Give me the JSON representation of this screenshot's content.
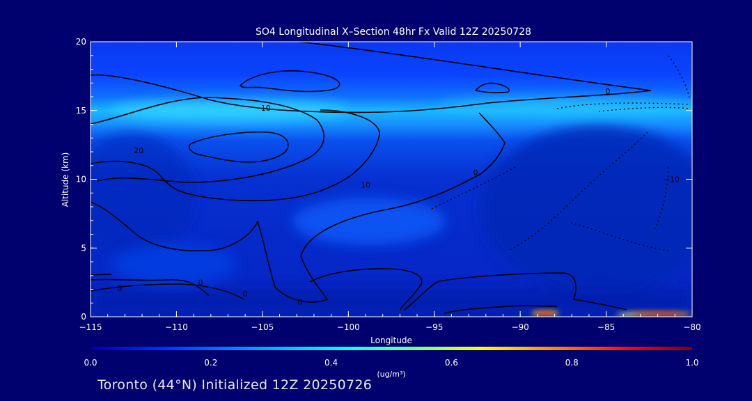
{
  "chart_data": {
    "type": "heatmap",
    "title": "SO4 Longitudinal X–Section 48hr  Fx Valid 12Z 20250728",
    "xlabel": "Longitude",
    "ylabel": "Altitude (km)",
    "xlim": [
      -115,
      -80
    ],
    "ylim": [
      0,
      20
    ],
    "x_ticks": [
      -115,
      -110,
      -105,
      -100,
      -95,
      -90,
      -85,
      -80
    ],
    "x_tick_labels": [
      "−115",
      "−110",
      "−105",
      "−100",
      "−95",
      "−90",
      "−85",
      "−80"
    ],
    "y_ticks": [
      0,
      5,
      10,
      15,
      20
    ],
    "y_tick_labels": [
      "0",
      "5",
      "10",
      "15",
      "20"
    ],
    "colorbar": {
      "min": 0.0,
      "max": 1.0,
      "ticks": [
        0.0,
        0.2,
        0.4,
        0.6,
        0.8,
        1.0
      ],
      "tick_labels": [
        "0.0",
        "0.2",
        "0.4",
        "0.6",
        "0.8",
        "1.0"
      ],
      "unit_label": "(ug/m³)",
      "colors": [
        "#0000a0",
        "#0030ff",
        "#00b0ff",
        "#00ffff",
        "#80ff80",
        "#ffff00",
        "#ff8000",
        "#ff0000",
        "#800000"
      ]
    },
    "contour_labels": [
      {
        "text": "10",
        "x": -104.8,
        "y": 15.2
      },
      {
        "text": "20",
        "x": -112.2,
        "y": 12.1
      },
      {
        "text": "10",
        "x": -99.0,
        "y": 9.6
      },
      {
        "text": "0",
        "x": -92.6,
        "y": 10.5
      },
      {
        "text": "0",
        "x": -84.9,
        "y": 16.4
      },
      {
        "text": "−10",
        "x": -81.2,
        "y": 10.0
      },
      {
        "text": "0",
        "x": -113.3,
        "y": 2.1
      },
      {
        "text": "0",
        "x": -108.6,
        "y": 2.5
      },
      {
        "text": "0",
        "x": -106.0,
        "y": 1.7
      },
      {
        "text": "0",
        "x": -102.8,
        "y": 1.1
      }
    ]
  },
  "footer_text": "Toronto (44°N) Initialized 12Z 20250726"
}
